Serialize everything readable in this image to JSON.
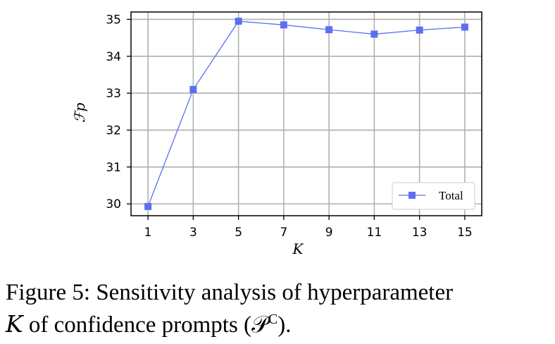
{
  "chart_data": {
    "type": "line",
    "x": [
      1,
      3,
      5,
      7,
      9,
      11,
      13,
      15
    ],
    "series": [
      {
        "name": "Total",
        "values": [
          29.93,
          33.1,
          34.95,
          34.85,
          34.72,
          34.6,
          34.71,
          34.79
        ]
      }
    ],
    "xticks": [
      "1",
      "3",
      "5",
      "7",
      "9",
      "11",
      "13",
      "15"
    ],
    "yticks": [
      "30",
      "31",
      "32",
      "33",
      "34",
      "35"
    ],
    "xlim": [
      0.25,
      15.75
    ],
    "ylim": [
      29.68,
      35.2
    ],
    "xlabel": "K",
    "ylabel": "ℱp",
    "grid": true,
    "legend_position": "lower-right",
    "colors": {
      "series": "#5b6ff0",
      "grid": "#b0b0b0",
      "axes": "#000000"
    }
  },
  "caption": {
    "prefix": "Figure 5: Sensitivity analysis of hyperparameter",
    "var": "K",
    "middle": " of confidence prompts (",
    "math": "𝒫",
    "sup": "C",
    "suffix": ")."
  }
}
